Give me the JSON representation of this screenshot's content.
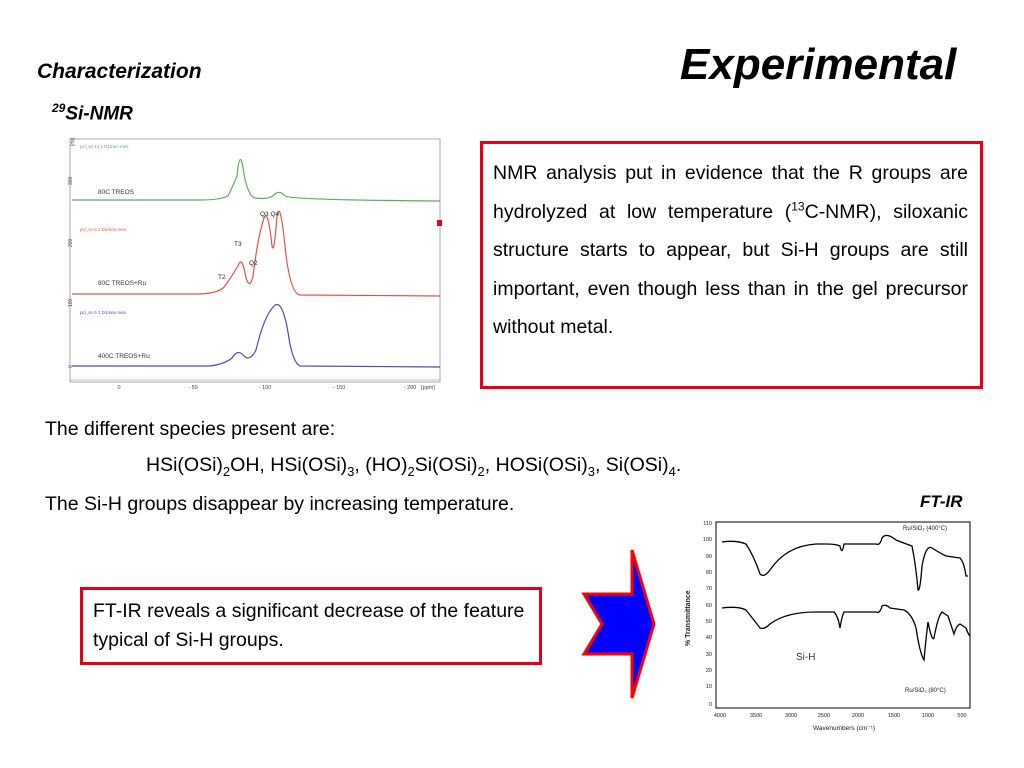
{
  "slide": {
    "title": "Experimental",
    "section": "Characterization",
    "nmr_heading_sup": "29",
    "nmr_heading": "Si-NMR",
    "nmr_box": {
      "part1": "NMR analysis put in evidence that the R groups are hydrolyzed at low temperature (",
      "sup": "13",
      "part2": "C-NMR), siloxanic structure starts to appear, but Si-H groups are still important, even though less than in the gel precursor without metal."
    },
    "species_intro": "The different species present are:",
    "species_parts": [
      "HSi(OSi)",
      "2",
      "OH, HSi(OSi)",
      "3",
      ", (HO)",
      "2",
      "Si(OSi)",
      "2",
      ", HOSi(OSi)",
      "3",
      ",   Si(OSi)",
      "4",
      "."
    ],
    "sih_line": "The Si-H groups disappear by increasing temperature.",
    "ftir_label": "FT-IR",
    "ftir_box": "FT-IR reveals a significant decrease of the feature typical of Si-H groups."
  },
  "nmr_chart": {
    "y_ticks": [
      "300",
      "200",
      "100",
      "0"
    ],
    "y_unit": "[mi]",
    "x_ticks": [
      "0",
      "- 50",
      "- 100",
      "- 150",
      "- 200"
    ],
    "x_unit": "[ppm]",
    "trace_headers": [
      "pcl_sn 14 1 D1/neo mes",
      "pcl_sn 5 1 D1/neo mes",
      "pcl_sn 6 1 D1/neo mes"
    ],
    "trace_labels": [
      "80C TREOS",
      "80C    TREOS+Ru",
      "400C    TREOS+Ru"
    ],
    "peak_labels": [
      "Q3 Q4",
      "T3",
      "Q2",
      "T2"
    ],
    "colors": {
      "top": "#5cae5c",
      "middle": "#d9534a",
      "bottom": "#4a4ab8",
      "frame": "#aaaaaa"
    }
  },
  "ftir_chart": {
    "y_label": "% Transmittance",
    "x_label": "Wavenumbers (cm⁻¹)",
    "y_ticks": [
      "110",
      "100",
      "90",
      "80",
      "70",
      "60",
      "50",
      "40",
      "30",
      "20",
      "10",
      "0"
    ],
    "x_ticks": [
      "4000",
      "3500",
      "3000",
      "2500",
      "2000",
      "1500",
      "1000",
      "500"
    ],
    "legend_top": "Ru/SiO₂ (400°C)",
    "legend_bottom": "Ru/SiO₂ (80°C)",
    "sih_annotation": "Si-H"
  },
  "arrow": {
    "fill": "#0000ff",
    "border": "#ff0000"
  }
}
